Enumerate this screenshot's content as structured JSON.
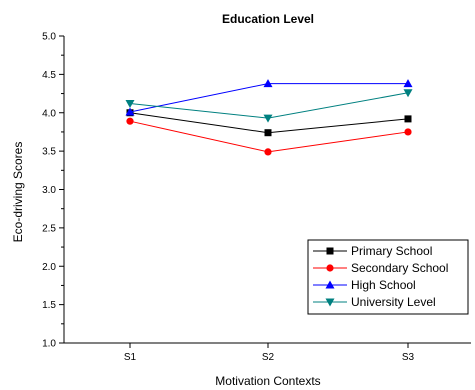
{
  "chart_data": {
    "type": "line",
    "title": "Education Level",
    "xlabel": "Motivation Contexts",
    "ylabel": "Eco-driving Scores",
    "categories": [
      "S1",
      "S2",
      "S3"
    ],
    "ylim": [
      1.0,
      5.0
    ],
    "yticks": [
      "1.0",
      "1.5",
      "2.0",
      "2.5",
      "3.0",
      "3.5",
      "4.0",
      "4.5",
      "5.0"
    ],
    "grid": false,
    "legend_position": "bottom-right",
    "series": [
      {
        "name": "Primary School",
        "values": [
          4.0,
          3.74,
          3.92
        ],
        "color": "#000000",
        "marker": "square"
      },
      {
        "name": "Secondary School",
        "values": [
          3.89,
          3.49,
          3.75
        ],
        "color": "#ff0000",
        "marker": "circle"
      },
      {
        "name": "High School",
        "values": [
          4.01,
          4.38,
          4.38
        ],
        "color": "#0000ff",
        "marker": "triangle-up"
      },
      {
        "name": "University Level",
        "values": [
          4.12,
          3.93,
          4.26
        ],
        "color": "#008080",
        "marker": "triangle-down"
      }
    ]
  }
}
